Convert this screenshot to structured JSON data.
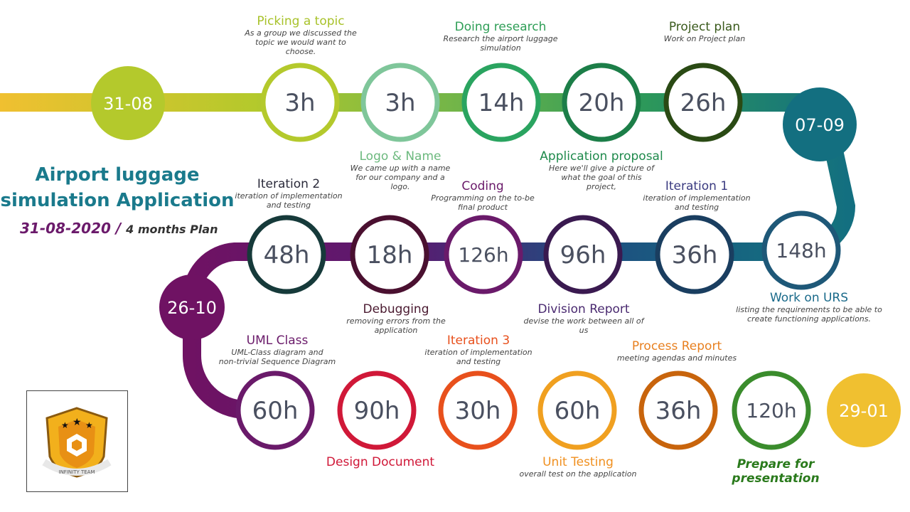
{
  "title": {
    "line1": "Airport luggage",
    "line2": "simulation Application"
  },
  "subtitle": {
    "date": "31-08-2020 /",
    "plan": "4 months Plan"
  },
  "dates": [
    {
      "label": "31-08",
      "color": "#b4c92c"
    },
    {
      "label": "07-09",
      "color": "#136f80"
    },
    {
      "label": "26-10",
      "color": "#6f1263"
    },
    {
      "label": "29-01",
      "color": "#f0c030"
    }
  ],
  "milestones": [
    {
      "hours": "3h",
      "color": "#b4c92c",
      "title": "Picking a topic",
      "title_color": "#a8c22a",
      "desc": [
        "As a group we discussed the",
        "topic we would want to",
        "choose."
      ]
    },
    {
      "hours": "3h",
      "color": "#7fc69a",
      "title": "Logo & Name",
      "title_color": "#6cb97e",
      "desc": [
        "We came up with a name",
        "for our company and a",
        "logo."
      ]
    },
    {
      "hours": "14h",
      "color": "#2aa460",
      "title": "Doing research",
      "title_color": "#2e9e56",
      "desc": [
        "Research the airport luggage",
        "simulation"
      ]
    },
    {
      "hours": "20h",
      "color": "#1c7e48",
      "title": "Application proposal",
      "title_color": "#1f8a4c",
      "desc": [
        "Here we'll give a picture of",
        "what the goal of this",
        "project,"
      ]
    },
    {
      "hours": "26h",
      "color": "#2a4a14",
      "title": "Project plan",
      "title_color": "#3a5a1c",
      "desc": [
        "Work on Project plan"
      ]
    },
    {
      "hours": "148h",
      "color": "#1e5878",
      "title": "Work on URS",
      "title_color": "#1a6a8a",
      "desc": [
        "listing the requirements to be able to",
        "create functioning applications."
      ]
    },
    {
      "hours": "36h",
      "color": "#1a3e60",
      "title": "Iteration 1",
      "title_color": "#3a3a80",
      "desc": [
        "iteration of implementation",
        "and testing"
      ]
    },
    {
      "hours": "96h",
      "color": "#3a1a50",
      "title": "Division Report",
      "title_color": "#4a2a70",
      "desc": [
        "devise the work between all of",
        "us"
      ]
    },
    {
      "hours": "126h",
      "color": "#6a1a6a",
      "title": "Coding",
      "title_color": "#6a1a6a",
      "desc": [
        "Programming on the to-be",
        "final product"
      ]
    },
    {
      "hours": "18h",
      "color": "#4a1030",
      "title": "Debugging",
      "title_color": "#4a1a30",
      "desc": [
        "removing errors from the",
        "application"
      ]
    },
    {
      "hours": "48h",
      "color": "#163a3a",
      "title": "Iteration 2",
      "title_color": "#2a2a3a",
      "desc": [
        "iteration of implementation",
        "and testing"
      ]
    },
    {
      "hours": "60h",
      "color": "#6a1a6a",
      "title": "UML Class",
      "title_color": "#6a1a6a",
      "desc": [
        "UML-Class diagram and",
        "non-trivial Sequence Diagram"
      ]
    },
    {
      "hours": "90h",
      "color": "#d01838",
      "title": "Design Document",
      "title_color": "#d01838",
      "desc": []
    },
    {
      "hours": "30h",
      "color": "#e8501c",
      "title": "Iteration 3",
      "title_color": "#e8501c",
      "desc": [
        "iteration of implementation",
        "and testing"
      ]
    },
    {
      "hours": "60h",
      "color": "#f0a020",
      "title": "Unit Testing",
      "title_color": "#f09020",
      "desc": [
        "overall test on the application"
      ]
    },
    {
      "hours": "36h",
      "color": "#c8640c",
      "title": "Process Report",
      "title_color": "#e88020",
      "desc": [
        "meeting agendas and minutes"
      ]
    },
    {
      "hours": "120h",
      "color": "#3a8c2c",
      "title": "Prepare for presentation",
      "title_color": "#2a7a1c",
      "desc": []
    }
  ],
  "logo": {
    "text": "INFINITY TEAM"
  }
}
